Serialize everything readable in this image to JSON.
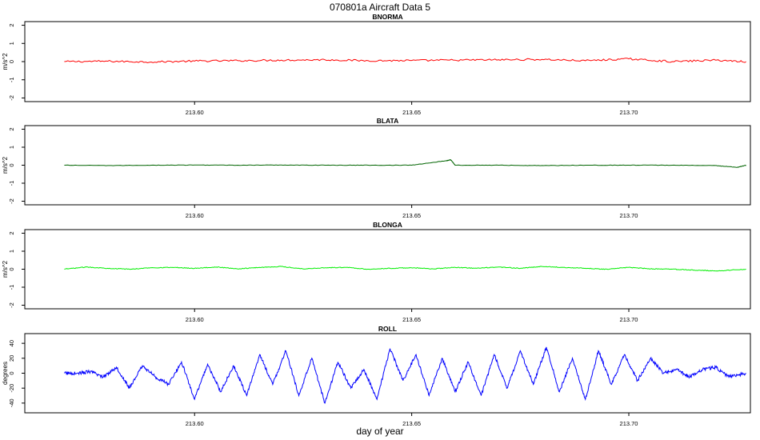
{
  "figure": {
    "title": "070801a   Aircraft Data 5",
    "xlabel": "day of year"
  },
  "chart_data": [
    {
      "type": "line",
      "title": "BNORMA",
      "ylabel": "m/s^2",
      "color": "#ff0000",
      "xlim": [
        213.5609,
        213.728
      ],
      "ylim": [
        -2.2,
        2.2
      ],
      "yticks": [
        -2,
        -1,
        0,
        1,
        2
      ],
      "xticks": [
        213.6,
        213.65,
        213.7
      ],
      "xtick_labels": [
        "213.60",
        "213.65",
        "213.70"
      ],
      "x": [
        213.57,
        213.58,
        213.59,
        213.6,
        213.61,
        213.62,
        213.63,
        213.64,
        213.65,
        213.66,
        213.67,
        213.68,
        213.69,
        213.7,
        213.71,
        213.72,
        213.727
      ],
      "y": [
        0.0,
        0.02,
        -0.02,
        0.03,
        0.05,
        0.08,
        0.1,
        0.05,
        0.06,
        0.08,
        0.1,
        0.12,
        0.05,
        0.15,
        0.0,
        0.08,
        0.0
      ]
    },
    {
      "type": "line",
      "title": "BLATA",
      "ylabel": "m/s^2",
      "color": "#006400",
      "xlim": [
        213.5609,
        213.728
      ],
      "ylim": [
        -2.2,
        2.2
      ],
      "yticks": [
        -2,
        -1,
        0,
        1,
        2
      ],
      "xticks": [
        213.6,
        213.65,
        213.7
      ],
      "xtick_labels": [
        "213.60",
        "213.65",
        "213.70"
      ],
      "x": [
        213.57,
        213.58,
        213.59,
        213.6,
        213.61,
        213.62,
        213.63,
        213.64,
        213.65,
        213.658,
        213.659,
        213.66,
        213.67,
        213.68,
        213.69,
        213.7,
        213.71,
        213.72,
        213.725,
        213.727
      ],
      "y": [
        0.0,
        -0.02,
        0.0,
        0.01,
        0.0,
        0.01,
        0.0,
        0.0,
        0.0,
        0.25,
        0.3,
        0.0,
        0.0,
        -0.02,
        0.0,
        0.0,
        0.0,
        -0.02,
        -0.12,
        0.0
      ]
    },
    {
      "type": "line",
      "title": "BLONGA",
      "ylabel": "m/s^2",
      "color": "#00ee00",
      "xlim": [
        213.5609,
        213.728
      ],
      "ylim": [
        -2.2,
        2.2
      ],
      "yticks": [
        -2,
        -1,
        0,
        1,
        2
      ],
      "xticks": [
        213.6,
        213.65,
        213.7
      ],
      "xtick_labels": [
        "213.60",
        "213.65",
        "213.70"
      ],
      "x": [
        213.57,
        213.575,
        213.58,
        213.585,
        213.59,
        213.595,
        213.6,
        213.605,
        213.61,
        213.615,
        213.62,
        213.625,
        213.63,
        213.635,
        213.64,
        213.645,
        213.65,
        213.655,
        213.66,
        213.665,
        213.67,
        213.675,
        213.68,
        213.685,
        213.69,
        213.695,
        213.7,
        213.705,
        213.71,
        213.715,
        213.72,
        213.727
      ],
      "y": [
        0.0,
        0.12,
        0.05,
        0.0,
        0.08,
        0.1,
        0.05,
        0.12,
        0.02,
        0.1,
        0.15,
        0.02,
        0.08,
        0.1,
        0.0,
        0.05,
        0.08,
        0.02,
        0.1,
        0.05,
        0.12,
        0.05,
        0.15,
        0.1,
        0.05,
        0.0,
        0.1,
        0.02,
        0.0,
        -0.05,
        -0.1,
        0.0
      ]
    },
    {
      "type": "line",
      "title": "ROLL",
      "ylabel": "degrees",
      "color": "#0000ff",
      "xlim": [
        213.5609,
        213.728
      ],
      "ylim": [
        -53,
        53
      ],
      "yticks": [
        -40,
        -20,
        0,
        20,
        40
      ],
      "xticks": [
        213.6,
        213.65,
        213.7
      ],
      "xtick_labels": [
        "213.60",
        "213.65",
        "213.70"
      ],
      "x": [
        213.57,
        213.573,
        213.576,
        213.579,
        213.582,
        213.585,
        213.588,
        213.591,
        213.594,
        213.597,
        213.6,
        213.603,
        213.606,
        213.609,
        213.612,
        213.615,
        213.618,
        213.621,
        213.624,
        213.627,
        213.63,
        213.633,
        213.636,
        213.639,
        213.642,
        213.645,
        213.648,
        213.651,
        213.654,
        213.657,
        213.66,
        213.663,
        213.666,
        213.669,
        213.672,
        213.675,
        213.678,
        213.681,
        213.684,
        213.687,
        213.69,
        213.693,
        213.696,
        213.699,
        213.702,
        213.705,
        213.708,
        213.711,
        213.714,
        213.717,
        213.72,
        213.723,
        213.727
      ],
      "y": [
        0,
        0,
        2,
        -5,
        8,
        -20,
        10,
        -5,
        -15,
        15,
        -35,
        12,
        -25,
        10,
        -30,
        25,
        -15,
        30,
        -30,
        20,
        -40,
        15,
        -20,
        5,
        -35,
        33,
        -10,
        25,
        -30,
        20,
        -25,
        15,
        -30,
        25,
        -20,
        30,
        -15,
        35,
        -25,
        20,
        -35,
        30,
        -15,
        25,
        -10,
        20,
        0,
        5,
        -5,
        5,
        8,
        -5,
        0
      ]
    }
  ]
}
